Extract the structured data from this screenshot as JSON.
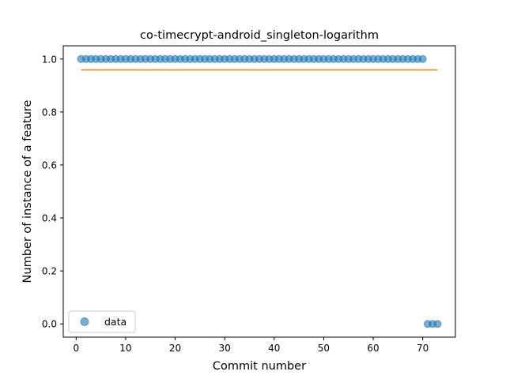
{
  "chart_data": {
    "type": "scatter",
    "title": "co-timecrypt-android_singleton-logarithm",
    "xlabel": "Commit number",
    "ylabel": "Number of instance of a feature",
    "xlim": [
      -2.6,
      76.6
    ],
    "ylim": [
      -0.05,
      1.05
    ],
    "xticks": [
      0,
      10,
      20,
      30,
      40,
      50,
      60,
      70
    ],
    "yticks": [
      0.0,
      0.2,
      0.4,
      0.6,
      0.8,
      1.0
    ],
    "xtick_labels": [
      "0",
      "10",
      "20",
      "30",
      "40",
      "50",
      "60",
      "70"
    ],
    "ytick_labels": [
      "0.0",
      "0.2",
      "0.4",
      "0.6",
      "0.8",
      "1.0"
    ],
    "grid": false,
    "legend_position": "lower-left",
    "colors": {
      "data": "#1f77b4",
      "fit": "#ff7f0e"
    },
    "series": [
      {
        "name": "data",
        "kind": "scatter",
        "x": [
          1,
          2,
          3,
          4,
          5,
          6,
          7,
          8,
          9,
          10,
          11,
          12,
          13,
          14,
          15,
          16,
          17,
          18,
          19,
          20,
          21,
          22,
          23,
          24,
          25,
          26,
          27,
          28,
          29,
          30,
          31,
          32,
          33,
          34,
          35,
          36,
          37,
          38,
          39,
          40,
          41,
          42,
          43,
          44,
          45,
          46,
          47,
          48,
          49,
          50,
          51,
          52,
          53,
          54,
          55,
          56,
          57,
          58,
          59,
          60,
          61,
          62,
          63,
          64,
          65,
          66,
          67,
          68,
          69,
          70,
          71,
          72,
          73
        ],
        "y": [
          1,
          1,
          1,
          1,
          1,
          1,
          1,
          1,
          1,
          1,
          1,
          1,
          1,
          1,
          1,
          1,
          1,
          1,
          1,
          1,
          1,
          1,
          1,
          1,
          1,
          1,
          1,
          1,
          1,
          1,
          1,
          1,
          1,
          1,
          1,
          1,
          1,
          1,
          1,
          1,
          1,
          1,
          1,
          1,
          1,
          1,
          1,
          1,
          1,
          1,
          1,
          1,
          1,
          1,
          1,
          1,
          1,
          1,
          1,
          1,
          1,
          1,
          1,
          1,
          1,
          1,
          1,
          1,
          1,
          1,
          0,
          0,
          0
        ]
      },
      {
        "kind": "line",
        "x": [
          1,
          73
        ],
        "y": [
          0.959,
          0.959
        ]
      }
    ]
  }
}
